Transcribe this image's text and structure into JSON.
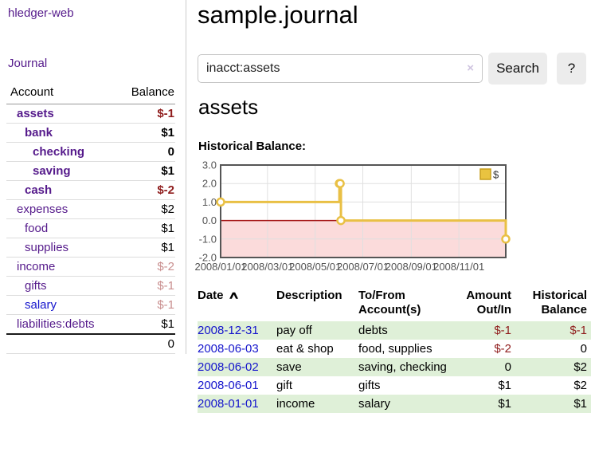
{
  "colors": {
    "link_purple": "#551a8b",
    "link_blue": "#1414cc",
    "negative_strong": "#8f1c1c",
    "negative_faded": "#c98f8f",
    "row_stripe_green": "#dff0d8"
  },
  "sidebar": {
    "brand": "hledger-web",
    "journal_link": "Journal",
    "accounts_table": {
      "account_header": "Account",
      "balance_header": "Balance",
      "rows": [
        {
          "name": "assets",
          "depth": 1,
          "balance": "$-1",
          "bold": true,
          "balance_style": "negative-strong",
          "link_style": "purple"
        },
        {
          "name": "bank",
          "depth": 2,
          "balance": "$1",
          "bold": true,
          "balance_style": "normal",
          "link_style": "purple"
        },
        {
          "name": "checking",
          "depth": 3,
          "balance": "0",
          "bold": true,
          "balance_style": "normal",
          "link_style": "purple"
        },
        {
          "name": "saving",
          "depth": 3,
          "balance": "$1",
          "bold": true,
          "balance_style": "normal",
          "link_style": "purple"
        },
        {
          "name": "cash",
          "depth": 2,
          "balance": "$-2",
          "bold": true,
          "balance_style": "negative-strong",
          "link_style": "purple"
        },
        {
          "name": "expenses",
          "depth": 1,
          "balance": "$2",
          "bold": false,
          "balance_style": "normal",
          "link_style": "purple"
        },
        {
          "name": "food",
          "depth": 2,
          "balance": "$1",
          "bold": false,
          "balance_style": "normal",
          "link_style": "purple"
        },
        {
          "name": "supplies",
          "depth": 2,
          "balance": "$1",
          "bold": false,
          "balance_style": "normal",
          "link_style": "purple"
        },
        {
          "name": "income",
          "depth": 1,
          "balance": "$-2",
          "bold": false,
          "balance_style": "negative-faded",
          "link_style": "purple"
        },
        {
          "name": "gifts",
          "depth": 2,
          "balance": "$-1",
          "bold": false,
          "balance_style": "negative-faded",
          "link_style": "purple"
        },
        {
          "name": "salary",
          "depth": 2,
          "balance": "$-1",
          "bold": false,
          "balance_style": "negative-faded",
          "link_style": "blue"
        },
        {
          "name": "liabilities:debts",
          "depth": 1,
          "balance": "$1",
          "bold": false,
          "balance_style": "normal",
          "link_style": "purple"
        }
      ],
      "total": "0"
    }
  },
  "header": {
    "title": "sample.journal"
  },
  "search": {
    "value": "inacct:assets",
    "clear_icon": "×",
    "button_label": "Search",
    "help_label": "?"
  },
  "account_page": {
    "heading": "assets",
    "chart_title": "Historical Balance:"
  },
  "chart_data": {
    "type": "line",
    "style": "step",
    "title": "Historical Balance:",
    "series": [
      {
        "name": "$",
        "points": [
          [
            "2008-01-01",
            1
          ],
          [
            "2008-06-01",
            2
          ],
          [
            "2008-06-02",
            2
          ],
          [
            "2008-06-03",
            0
          ],
          [
            "2008-12-31",
            -1
          ]
        ]
      }
    ],
    "x_domain": [
      "2008-01-01",
      "2008-12-31"
    ],
    "x_ticks": [
      "2008/01/01",
      "2008/03/01",
      "2008/05/01",
      "2008/07/01",
      "2008/09/01",
      "2008/11/01"
    ],
    "y_ticks": [
      3.0,
      2.0,
      1.0,
      0.0,
      -1.0,
      -2.0
    ],
    "ylim": [
      -2.0,
      3.0
    ],
    "grid": true,
    "legend_position": "top-right",
    "colors": {
      "line": "#e9c045",
      "marker_fill": "#ffffff",
      "legend_fill": "#e9c340",
      "legend_border": "#c79e1b",
      "negative_region": "#fbdbdb",
      "zero_line": "#a51616",
      "grid_line": "#e0e0e0",
      "border": "#555555",
      "tick_text": "#545454"
    }
  },
  "register": {
    "columns": [
      "Date",
      "Description",
      "To/From Account(s)",
      "Amount Out/In",
      "Historical Balance"
    ],
    "sort_icon": "∧",
    "rows": [
      {
        "date": "2008-12-31",
        "description": "pay off",
        "accounts": "debts",
        "amount": "$-1",
        "amount_style": "negative",
        "balance": "$-1",
        "balance_style": "negative"
      },
      {
        "date": "2008-06-03",
        "description": "eat & shop",
        "accounts": "food, supplies",
        "amount": "$-2",
        "amount_style": "negative",
        "balance": "0",
        "balance_style": "normal"
      },
      {
        "date": "2008-06-02",
        "description": "save",
        "accounts": "saving, checking",
        "amount": "0",
        "amount_style": "normal",
        "balance": "$2",
        "balance_style": "normal"
      },
      {
        "date": "2008-06-01",
        "description": "gift",
        "accounts": "gifts",
        "amount": "$1",
        "amount_style": "normal",
        "balance": "$2",
        "balance_style": "normal"
      },
      {
        "date": "2008-01-01",
        "description": "income",
        "accounts": "salary",
        "amount": "$1",
        "amount_style": "normal",
        "balance": "$1",
        "balance_style": "normal"
      }
    ]
  }
}
